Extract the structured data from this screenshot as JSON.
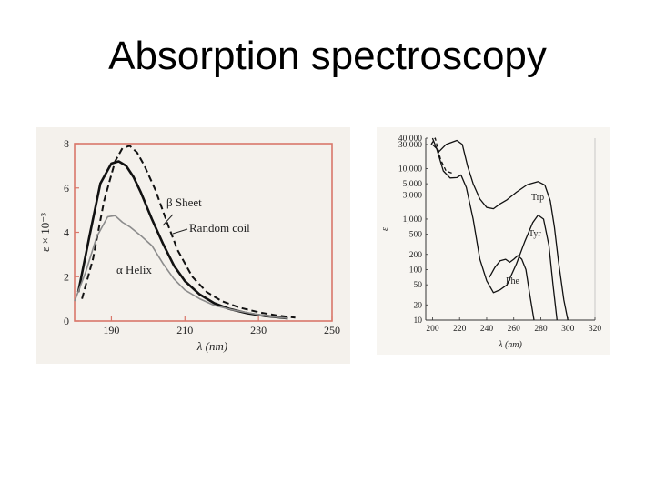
{
  "slide": {
    "title": "Absorption spectroscopy"
  },
  "chart_data": [
    {
      "type": "line",
      "title": "",
      "xlabel": "λ (nm)",
      "ylabel": "ε × 10⁻³",
      "xlim": [
        180,
        250
      ],
      "ylim": [
        0,
        8
      ],
      "xticks": [
        190,
        210,
        230,
        250
      ],
      "yticks": [
        0,
        2,
        4,
        6,
        8
      ],
      "grid": false,
      "series": [
        {
          "name": "β Sheet",
          "style": "dashed",
          "color": "#111111",
          "x": [
            182,
            185,
            188,
            191,
            193,
            195,
            197,
            199,
            202,
            205,
            208,
            212,
            216,
            220,
            225,
            230,
            235,
            240
          ],
          "y": [
            1.0,
            2.8,
            5.4,
            7.2,
            7.8,
            7.9,
            7.6,
            7.0,
            5.9,
            4.5,
            3.2,
            2.0,
            1.3,
            0.9,
            0.6,
            0.4,
            0.25,
            0.15
          ]
        },
        {
          "name": "Random coil",
          "style": "solid",
          "color": "#111111",
          "x": [
            181,
            184,
            187,
            190,
            192,
            194,
            196,
            198,
            201,
            204,
            207,
            210,
            214,
            218,
            222,
            227,
            232,
            238
          ],
          "y": [
            1.3,
            3.8,
            6.2,
            7.1,
            7.2,
            7.0,
            6.5,
            5.8,
            4.6,
            3.5,
            2.5,
            1.8,
            1.2,
            0.8,
            0.55,
            0.35,
            0.22,
            0.12
          ]
        },
        {
          "name": "α Helix",
          "style": "solid",
          "color": "#8c8c8c",
          "x": [
            180,
            183,
            186,
            189,
            191,
            193,
            195,
            198,
            201,
            204,
            207,
            210,
            214,
            218,
            223,
            228,
            233,
            238
          ],
          "y": [
            0.9,
            2.2,
            3.8,
            4.7,
            4.75,
            4.45,
            4.25,
            3.85,
            3.4,
            2.6,
            1.9,
            1.4,
            1.0,
            0.7,
            0.5,
            0.35,
            0.2,
            0.12
          ]
        }
      ]
    },
    {
      "type": "line",
      "title": "",
      "xlabel": "λ (nm)",
      "ylabel": "ε",
      "xlim": [
        195,
        320
      ],
      "ylog": true,
      "yticks": [
        10,
        20,
        50,
        100,
        200,
        500,
        1000,
        3000,
        5000,
        10000,
        30000,
        40000
      ],
      "ytick_labels": [
        "10",
        "20",
        "50",
        "100",
        "200",
        "500",
        "1,000",
        "3,000",
        "5,000",
        "10,000",
        "30,000",
        "40,000"
      ],
      "xticks": [
        200,
        220,
        240,
        260,
        280,
        300,
        320
      ],
      "grid": false,
      "series": [
        {
          "name": "Trp",
          "color": "#111111",
          "x": [
            200,
            205,
            210,
            218,
            222,
            226,
            230,
            235,
            240,
            245,
            250,
            255,
            262,
            270,
            278,
            283,
            287,
            290,
            293,
            297,
            300
          ],
          "y": [
            30000,
            22000,
            30000,
            36000,
            30000,
            11000,
            5000,
            2500,
            1700,
            1600,
            2000,
            2400,
            3400,
            4800,
            5500,
            4700,
            2300,
            700,
            150,
            25,
            10
          ]
        },
        {
          "name": "Tyr",
          "color": "#111111",
          "x": [
            200,
            203,
            208,
            213,
            218,
            221,
            225,
            230,
            235,
            240,
            245,
            250,
            255,
            262,
            268,
            274,
            278,
            282,
            286,
            289,
            292
          ],
          "y": [
            40000,
            25000,
            9000,
            6500,
            6600,
            7500,
            4200,
            1000,
            160,
            60,
            35,
            40,
            50,
            130,
            350,
            850,
            1200,
            1000,
            300,
            50,
            10
          ]
        },
        {
          "name": "Phe",
          "color": "#111111",
          "x": [
            242,
            246,
            250,
            254,
            257,
            260,
            263,
            266,
            269,
            272,
            275
          ],
          "y": [
            70,
            110,
            150,
            160,
            140,
            160,
            190,
            160,
            100,
            30,
            10
          ]
        },
        {
          "name": "",
          "style": "dashed",
          "color": "#111111",
          "x": [
            199,
            202,
            206,
            210,
            215
          ],
          "y": [
            30000,
            40000,
            15000,
            9000,
            8000
          ]
        }
      ]
    }
  ]
}
